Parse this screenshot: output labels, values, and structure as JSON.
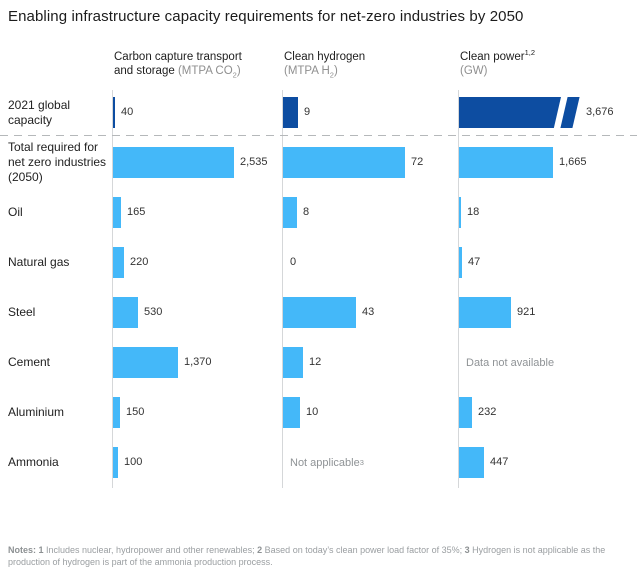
{
  "title": "Enabling infrastructure capacity requirements for net-zero industries by 2050",
  "colors": {
    "bar_dark": "#0d4da1",
    "bar_light": "#44b8f9",
    "axis": "#d5d7d9",
    "muted_text": "#8f9396"
  },
  "chart_data": {
    "type": "bar",
    "orientation": "horizontal",
    "panels_note": "three side-by-side panels sharing row categories, each with its own scale",
    "columns": [
      {
        "title": "Carbon capture transport",
        "title_sup": "",
        "line2_dark": "and storage ",
        "unit_pre": "(MTPA CO",
        "unit_sub": "2",
        "unit_post": ")"
      },
      {
        "title": "Clean hydrogen",
        "title_sup": "",
        "line2_dark": "",
        "unit_pre": "(MTPA H",
        "unit_sub": "2",
        "unit_post": ")"
      },
      {
        "title": "Clean power",
        "title_sup": "1,2",
        "line2_dark": "",
        "unit_pre": "(GW)",
        "unit_sub": "",
        "unit_post": ""
      }
    ],
    "rows": [
      {
        "label": "2021 global capacity",
        "series": "2021 global capacity",
        "style": "dark",
        "cells": [
          {
            "v": 40,
            "label": "40"
          },
          {
            "v": 9,
            "label": "9"
          },
          {
            "v": 3676,
            "label": "3,676",
            "broken": true
          }
        ]
      },
      {
        "label": "Total required for net zero industries (2050)",
        "series": "Total required",
        "style": "light",
        "cells": [
          {
            "v": 2535,
            "label": "2,535"
          },
          {
            "v": 72,
            "label": "72"
          },
          {
            "v": 1665,
            "label": "1,665"
          }
        ]
      },
      {
        "label": "Oil",
        "style": "light",
        "cells": [
          {
            "v": 165,
            "label": "165"
          },
          {
            "v": 8,
            "label": "8"
          },
          {
            "v": 18,
            "label": "18"
          }
        ]
      },
      {
        "label": "Natural gas",
        "style": "light",
        "cells": [
          {
            "v": 220,
            "label": "220"
          },
          {
            "v": 0,
            "label": "0"
          },
          {
            "v": 47,
            "label": "47"
          }
        ]
      },
      {
        "label": "Steel",
        "style": "light",
        "cells": [
          {
            "v": 530,
            "label": "530"
          },
          {
            "v": 43,
            "label": "43"
          },
          {
            "v": 921,
            "label": "921"
          }
        ]
      },
      {
        "label": "Cement",
        "style": "light",
        "cells": [
          {
            "v": 1370,
            "label": "1,370"
          },
          {
            "v": 12,
            "label": "12"
          },
          {
            "text": "Data not available",
            "sup": ""
          }
        ]
      },
      {
        "label": "Aluminium",
        "style": "light",
        "cells": [
          {
            "v": 150,
            "label": "150"
          },
          {
            "v": 10,
            "label": "10"
          },
          {
            "v": 232,
            "label": "232"
          }
        ]
      },
      {
        "label": "Ammonia",
        "style": "light",
        "cells": [
          {
            "v": 100,
            "label": "100"
          },
          {
            "text": "Not applicable",
            "sup": "3"
          },
          {
            "v": 447,
            "label": "447"
          }
        ]
      }
    ]
  },
  "notes": {
    "parts": [
      {
        "text": "Notes: 1",
        "bold": true
      },
      {
        "text": " Includes nuclear, hydropower and other renewables; ",
        "bold": false
      },
      {
        "text": "2",
        "bold": true
      },
      {
        "text": " Based on today’s clean power load factor of 35%; ",
        "bold": false
      },
      {
        "text": "3",
        "bold": true
      },
      {
        "text": " Hydrogen is not applicable as the production of hydrogen is part of the ammonia production process.",
        "bold": false
      }
    ]
  }
}
